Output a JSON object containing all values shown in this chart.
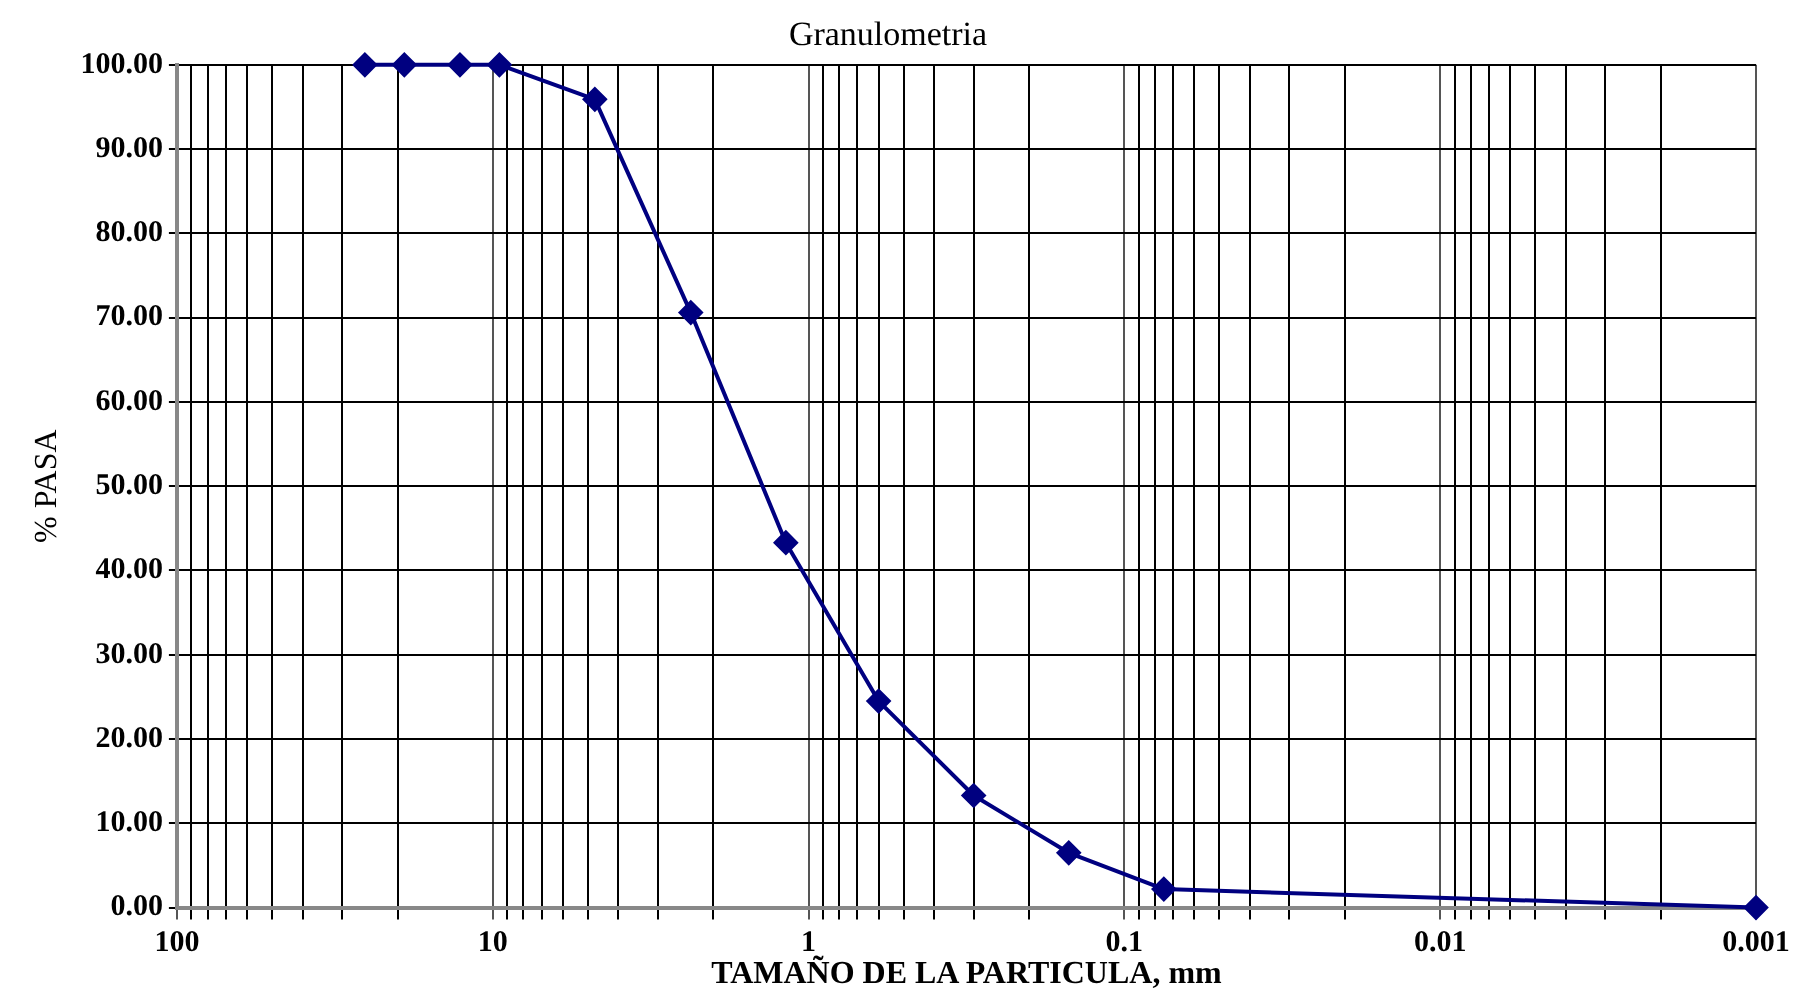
{
  "chart_data": {
    "type": "line",
    "title": "Granulometria",
    "xlabel": "TAMAÑO DE LA PARTICULA, mm",
    "ylabel": "% PASA",
    "x": [
      25.4,
      19.05,
      12.7,
      9.525,
      4.75,
      2.36,
      1.18,
      0.6,
      0.3,
      0.15,
      0.075,
      0.001
    ],
    "series": [
      {
        "color": "#000080",
        "values": [
          100,
          100,
          100,
          100,
          95.9,
          70.6,
          43.3,
          24.5,
          13.3,
          6.5,
          2.2,
          0
        ]
      }
    ],
    "log": "x",
    "xlim": [
      100,
      0.001
    ],
    "xticks": [
      100,
      {
        "value": 90,
        "label": null
      },
      {
        "value": 80,
        "label": null
      },
      {
        "value": 70,
        "label": null
      },
      {
        "value": 60,
        "label": null
      },
      {
        "value": 50,
        "label": null
      },
      {
        "value": 40,
        "label": null
      },
      {
        "value": 30,
        "label": null
      },
      {
        "value": 20,
        "label": null
      },
      10,
      {
        "value": 9,
        "label": null
      },
      {
        "value": 8,
        "label": null
      },
      {
        "value": 7,
        "label": null
      },
      {
        "value": 6,
        "label": null
      },
      {
        "value": 5,
        "label": null
      },
      {
        "value": 4,
        "label": null
      },
      {
        "value": 3,
        "label": null
      },
      {
        "value": 2,
        "label": null
      },
      1,
      {
        "value": 0.9,
        "label": null
      },
      {
        "value": 0.8,
        "label": null
      },
      {
        "value": 0.7,
        "label": null
      },
      {
        "value": 0.6,
        "label": null
      },
      {
        "value": 0.5,
        "label": null
      },
      {
        "value": 0.4,
        "label": null
      },
      {
        "value": 0.3,
        "label": null
      },
      {
        "value": 0.2,
        "label": null
      },
      0.1,
      {
        "value": 0.09,
        "label": null
      },
      {
        "value": 0.08,
        "label": null
      },
      {
        "value": 0.07,
        "label": null
      },
      {
        "value": 0.06,
        "label": null
      },
      {
        "value": 0.05,
        "label": null
      },
      {
        "value": 0.04,
        "label": null
      },
      {
        "value": 0.03,
        "label": null
      },
      {
        "value": 0.02,
        "label": null
      },
      0.01,
      {
        "value": 0.009,
        "label": null
      },
      {
        "value": 0.008,
        "label": null
      },
      {
        "value": 0.007,
        "label": null
      },
      {
        "value": 0.006,
        "label": null
      },
      {
        "value": 0.005,
        "label": null
      },
      {
        "value": 0.004,
        "label": null
      },
      {
        "value": 0.003,
        "label": null
      },
      {
        "value": 0.002,
        "label": null
      },
      0.001
    ],
    "ylim": [
      0,
      100
    ],
    "yticks": [
      {
        "value": 0,
        "label": "0.00"
      },
      {
        "value": 10,
        "label": "10.00"
      },
      {
        "value": 20,
        "label": "20.00"
      },
      {
        "value": 30,
        "label": "30.00"
      },
      {
        "value": 40,
        "label": "40.00"
      },
      {
        "value": 50,
        "label": "50.00"
      },
      {
        "value": 60,
        "label": "60.00"
      },
      {
        "value": 70,
        "label": "70.00"
      },
      {
        "value": 80,
        "label": "80.00"
      },
      {
        "value": 90,
        "label": "90.00"
      },
      {
        "value": 100,
        "label": "100.00"
      }
    ],
    "grid": true,
    "legend": false,
    "marker": "diamond",
    "line_style": "solid"
  }
}
